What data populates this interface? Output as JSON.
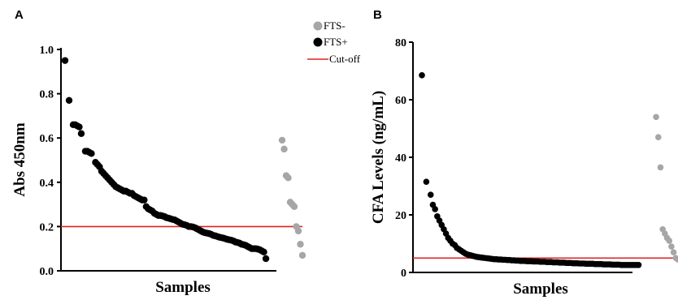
{
  "chart_data": [
    {
      "type": "scatter",
      "panel": "A",
      "xlabel": "Samples",
      "ylabel": "Abs 450nm",
      "ylim": [
        0,
        1.0
      ],
      "yticks": [
        0.0,
        0.2,
        0.4,
        0.6,
        0.8,
        1.0
      ],
      "tick_labels": [
        "0.0",
        "0.2",
        "0.4",
        "0.6",
        "0.8",
        "1.0"
      ],
      "cutoff": 0.2,
      "legend": {
        "placement": "top-right",
        "entries": [
          "FTS-",
          "FTS+",
          "Cut-off"
        ]
      },
      "colors": {
        "fts_neg": "#a6a6a6",
        "fts_pos": "#000000",
        "cutoff": "#e02020"
      },
      "series": [
        {
          "name": "FTS+",
          "x": [
            1,
            3,
            5,
            6,
            7,
            8,
            9,
            11,
            12,
            13,
            14,
            16,
            17,
            18,
            19,
            20,
            21,
            22,
            23,
            24,
            25,
            26,
            27,
            28,
            29,
            30,
            31,
            32,
            33,
            34,
            35,
            36,
            37,
            38,
            39,
            40,
            41,
            42,
            43,
            44,
            45,
            46,
            47,
            48,
            49,
            50,
            51,
            52,
            53,
            54,
            55,
            56,
            57,
            58,
            59,
            60,
            61,
            62,
            63,
            64,
            65,
            66,
            67,
            68,
            69,
            70,
            71,
            72,
            73,
            74,
            75,
            76,
            77,
            78,
            79,
            80,
            81,
            82,
            83,
            84,
            85,
            86,
            87,
            88,
            89,
            90,
            91,
            92,
            93,
            94,
            95,
            96,
            97,
            98,
            99,
            100
          ],
          "y": [
            0.95,
            0.77,
            0.66,
            0.66,
            0.655,
            0.65,
            0.62,
            0.54,
            0.54,
            0.535,
            0.53,
            0.49,
            0.48,
            0.47,
            0.45,
            0.44,
            0.43,
            0.42,
            0.41,
            0.4,
            0.39,
            0.38,
            0.375,
            0.37,
            0.365,
            0.36,
            0.36,
            0.355,
            0.35,
            0.35,
            0.34,
            0.335,
            0.33,
            0.325,
            0.32,
            0.32,
            0.29,
            0.28,
            0.275,
            0.27,
            0.26,
            0.255,
            0.25,
            0.25,
            0.248,
            0.245,
            0.24,
            0.238,
            0.235,
            0.232,
            0.23,
            0.225,
            0.22,
            0.215,
            0.21,
            0.208,
            0.205,
            0.2,
            0.2,
            0.198,
            0.195,
            0.19,
            0.185,
            0.18,
            0.175,
            0.172,
            0.17,
            0.168,
            0.165,
            0.16,
            0.158,
            0.155,
            0.152,
            0.15,
            0.148,
            0.145,
            0.142,
            0.14,
            0.138,
            0.135,
            0.13,
            0.128,
            0.125,
            0.12,
            0.118,
            0.115,
            0.11,
            0.105,
            0.1,
            0.1,
            0.1,
            0.098,
            0.095,
            0.09,
            0.085,
            0.055
          ]
        },
        {
          "name": "FTS-",
          "x": [
            108,
            109,
            110,
            111,
            112,
            113,
            114,
            115,
            116,
            117
          ],
          "y": [
            0.59,
            0.55,
            0.43,
            0.42,
            0.31,
            0.3,
            0.29,
            0.2,
            0.18,
            0.12
          ]
        }
      ],
      "extra_fts_neg": {
        "x": [
          118
        ],
        "y": [
          0.07
        ]
      }
    },
    {
      "type": "scatter",
      "panel": "B",
      "xlabel": "Samples",
      "ylabel": "CFA Levels (ng/mL)",
      "ylim": [
        0,
        80
      ],
      "yticks": [
        0,
        20,
        40,
        60,
        80
      ],
      "tick_labels": [
        "0",
        "20",
        "40",
        "60",
        "80"
      ],
      "cutoff": 5,
      "colors": {
        "fts_neg": "#a6a6a6",
        "fts_pos": "#000000",
        "cutoff": "#e02020"
      },
      "series": [
        {
          "name": "FTS+",
          "x": [
            1,
            3,
            5,
            6,
            7,
            8,
            9,
            10,
            11,
            12,
            13,
            14,
            15,
            16,
            17,
            18,
            19,
            20,
            21,
            22,
            23,
            24,
            25,
            26,
            27,
            28,
            29,
            30,
            31,
            32,
            33,
            34,
            35,
            36,
            37,
            38,
            39,
            40,
            41,
            42,
            43,
            44,
            45,
            46,
            47,
            48,
            49,
            50,
            51,
            52,
            53,
            54,
            55,
            56,
            57,
            58,
            59,
            60,
            61,
            62,
            63,
            64,
            65,
            66,
            67,
            68,
            69,
            70,
            71,
            72,
            73,
            74,
            75,
            76,
            77,
            78,
            79,
            80,
            81,
            82,
            83,
            84,
            85,
            86,
            87,
            88,
            89,
            90,
            91,
            92,
            93,
            94,
            95,
            96,
            97,
            98,
            99,
            100
          ],
          "y": [
            68.5,
            31.5,
            27,
            23.5,
            22,
            19.5,
            18,
            16.5,
            15,
            13.5,
            12,
            11,
            10,
            9.5,
            8.5,
            8,
            7.5,
            7,
            6.5,
            6.2,
            6,
            5.8,
            5.6,
            5.4,
            5.3,
            5.2,
            5.1,
            5,
            4.9,
            4.8,
            4.7,
            4.6,
            4.6,
            4.5,
            4.5,
            4.4,
            4.4,
            4.3,
            4.3,
            4.2,
            4.2,
            4.1,
            4.1,
            4,
            4,
            4,
            3.9,
            3.9,
            3.9,
            3.8,
            3.8,
            3.8,
            3.7,
            3.7,
            3.7,
            3.6,
            3.6,
            3.6,
            3.5,
            3.5,
            3.5,
            3.4,
            3.4,
            3.4,
            3.3,
            3.3,
            3.3,
            3.2,
            3.2,
            3.2,
            3.1,
            3.1,
            3.1,
            3,
            3,
            3,
            3,
            2.9,
            2.9,
            2.9,
            2.9,
            2.8,
            2.8,
            2.8,
            2.8,
            2.7,
            2.7,
            2.7,
            2.7,
            2.6,
            2.6,
            2.6,
            2.6,
            2.6,
            2.6,
            2.6,
            2.6,
            2.6
          ]
        },
        {
          "name": "FTS-",
          "x": [
            108,
            109,
            110,
            111,
            112,
            113,
            114,
            115,
            116,
            117,
            118
          ],
          "y": [
            54,
            47,
            36.5,
            15,
            13.5,
            12,
            11,
            9,
            7,
            5,
            4.5
          ]
        }
      ]
    }
  ],
  "panel_labels": [
    "A",
    "B"
  ]
}
